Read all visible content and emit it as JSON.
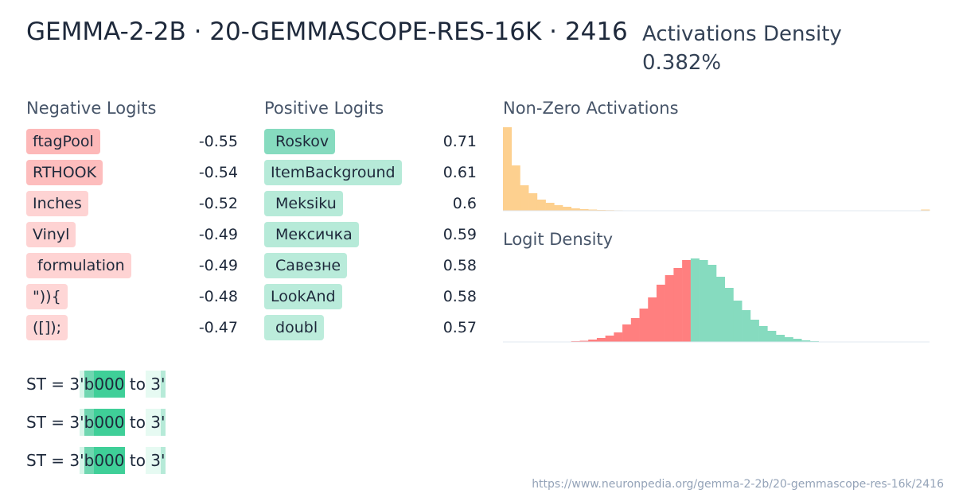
{
  "header": {
    "title": "GEMMA-2-2B · 20-GEMMASCOPE-RES-16K · 2416",
    "density_label": "Activations Density",
    "density_value": "0.382%"
  },
  "negative_logits": {
    "title": "Negative Logits",
    "items": [
      {
        "token": "ftagPool",
        "value": -0.55,
        "color": "#fdb8b8"
      },
      {
        "token": "RTHOOK",
        "value": -0.54,
        "color": "#fdbdbd"
      },
      {
        "token": "Inches",
        "value": -0.52,
        "color": "#fed3d3"
      },
      {
        "token": "Vinyl",
        "value": -0.49,
        "color": "#fed3d3"
      },
      {
        "token": " formulation",
        "value": -0.49,
        "color": "#fed3d3"
      },
      {
        "token": "\")){",
        "value": -0.48,
        "color": "#fed6d6"
      },
      {
        "token": "([]);",
        "value": -0.47,
        "color": "#fed6d6"
      }
    ]
  },
  "positive_logits": {
    "title": "Positive Logits",
    "items": [
      {
        "token": " Roskov",
        "value": 0.71,
        "color": "#86dbbf"
      },
      {
        "token": "ItemBackground",
        "value": 0.61,
        "color": "#b6ead8"
      },
      {
        "token": " Meksiku",
        "value": 0.6,
        "color": "#b6ead8"
      },
      {
        "token": " Мексичка",
        "value": 0.59,
        "color": "#b6ead8"
      },
      {
        "token": " Савезне",
        "value": 0.58,
        "color": "#b9ebda"
      },
      {
        "token": "LookAnd",
        "value": 0.58,
        "color": "#b9ebda"
      },
      {
        "token": " doubl",
        "value": 0.57,
        "color": "#bcecdb"
      }
    ]
  },
  "activations_histogram": {
    "title": "Non-Zero Activations",
    "color": "#fdd08f",
    "ylim": [
      0,
      105
    ],
    "values": [
      105,
      57,
      32,
      22,
      14,
      10,
      7,
      5,
      3,
      2,
      1.5,
      1,
      0.8,
      0.6,
      0.5,
      0.5,
      0.4,
      0.4,
      0.4,
      0.3,
      0.3,
      0.3,
      0.3,
      0.3,
      0.3,
      0.3,
      0.3,
      0.3,
      0.3,
      0.3,
      0.3,
      0.3,
      0.3,
      0.3,
      0.3,
      0.3,
      0.3,
      0.5,
      0.5,
      0.5,
      0.5,
      0.5,
      0.5,
      0.5,
      0.5,
      0.5,
      0.5,
      0.5,
      0.5,
      1.5
    ]
  },
  "logit_histogram": {
    "title": "Logit Density",
    "ylim": [
      0,
      105
    ],
    "negative": {
      "color": "#ff7f7f",
      "values": [
        0,
        0,
        0,
        0,
        0,
        0,
        0.3,
        0.5,
        1,
        1.5,
        3,
        5,
        8,
        12,
        22,
        30,
        42,
        56,
        72,
        84,
        93,
        103
      ]
    },
    "positive": {
      "color": "#86dbbf",
      "values": [
        105,
        103,
        97,
        82,
        68,
        52,
        40,
        28,
        20,
        14,
        9,
        6,
        4,
        2,
        1,
        0.5,
        0.3,
        0,
        0,
        0,
        0,
        0,
        0,
        0,
        0,
        0,
        0,
        0
      ]
    }
  },
  "examples": [
    [
      {
        "t": "ST =",
        "c": null
      },
      {
        "t": " 3",
        "c": null
      },
      {
        "t": "'",
        "c": "#d6f5e9"
      },
      {
        "t": "b",
        "c": "#6fd6b0"
      },
      {
        "t": "000",
        "c": "#3fcf98"
      },
      {
        "t": " to",
        "c": null
      },
      {
        "t": " 3",
        "c": "#e6faf2"
      },
      {
        "t": "'",
        "c": "#b6ead8"
      }
    ],
    [
      {
        "t": "ST =",
        "c": null
      },
      {
        "t": " 3",
        "c": null
      },
      {
        "t": "'",
        "c": "#d6f5e9"
      },
      {
        "t": "b",
        "c": "#6fd6b0"
      },
      {
        "t": "000",
        "c": "#3fcf98"
      },
      {
        "t": " to",
        "c": null
      },
      {
        "t": " 3",
        "c": "#e6faf2"
      },
      {
        "t": "'",
        "c": "#b6ead8"
      }
    ],
    [
      {
        "t": "ST =",
        "c": null
      },
      {
        "t": " 3",
        "c": null
      },
      {
        "t": "'",
        "c": "#d6f5e9"
      },
      {
        "t": "b",
        "c": "#6fd6b0"
      },
      {
        "t": "000",
        "c": "#3fcf98"
      },
      {
        "t": " to",
        "c": null
      },
      {
        "t": " 3",
        "c": "#e6faf2"
      },
      {
        "t": "'",
        "c": "#b6ead8"
      }
    ]
  ],
  "footer": "https://www.neuronpedia.org/gemma-2-2b/20-gemmascope-res-16k/2416"
}
